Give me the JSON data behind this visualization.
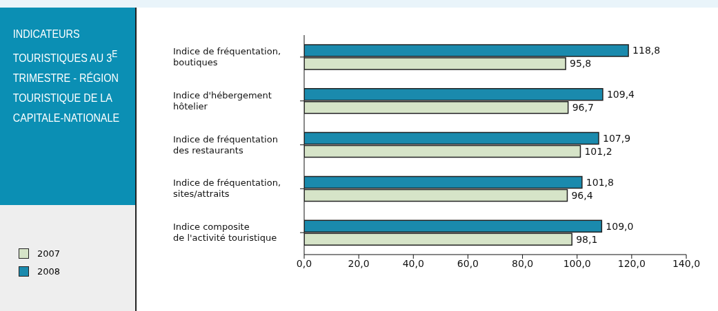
{
  "chart_data": {
    "type": "bar",
    "orientation": "horizontal",
    "title": "INDICATEURS TOURISTIQUES AU 3$^{E}$ TRIMESTRE - RÉGION TOURISTIQUE DE LA CAPITALE-NATIONALE",
    "categories": [
      "Indice de fréquentation,\nboutiques",
      "Indice d'hébergement\nhôtelier",
      "Indice de fréquentation\ndes restaurants",
      "Indice de fréquentation,\nsites/attraits",
      "Indice composite\nde l'activité touristique"
    ],
    "series": [
      {
        "name": "2008",
        "color": "#1a8aad",
        "values": [
          118.8,
          109.4,
          107.9,
          101.8,
          109.0
        ],
        "value_labels": [
          "118,8",
          "109,4",
          "107,9",
          "101,8",
          "109,0"
        ]
      },
      {
        "name": "2007",
        "color": "#d6e4c8",
        "values": [
          95.8,
          96.7,
          101.2,
          96.4,
          98.1
        ],
        "value_labels": [
          "95,8",
          "96,7",
          "101,2",
          "96,4",
          "98,1"
        ]
      }
    ],
    "xlim": [
      0,
      140
    ],
    "xticks": [
      {
        "value": 0,
        "label": "0,0"
      },
      {
        "value": 20,
        "label": "20,0"
      },
      {
        "value": 40,
        "label": "40,0"
      },
      {
        "value": 60,
        "label": "60,0"
      },
      {
        "value": 80,
        "label": "80,0"
      },
      {
        "value": 100,
        "label": "100,0"
      },
      {
        "value": 120,
        "label": "120,0"
      },
      {
        "value": 140,
        "label": "140,0"
      }
    ],
    "grid": false,
    "legend": "left"
  }
}
